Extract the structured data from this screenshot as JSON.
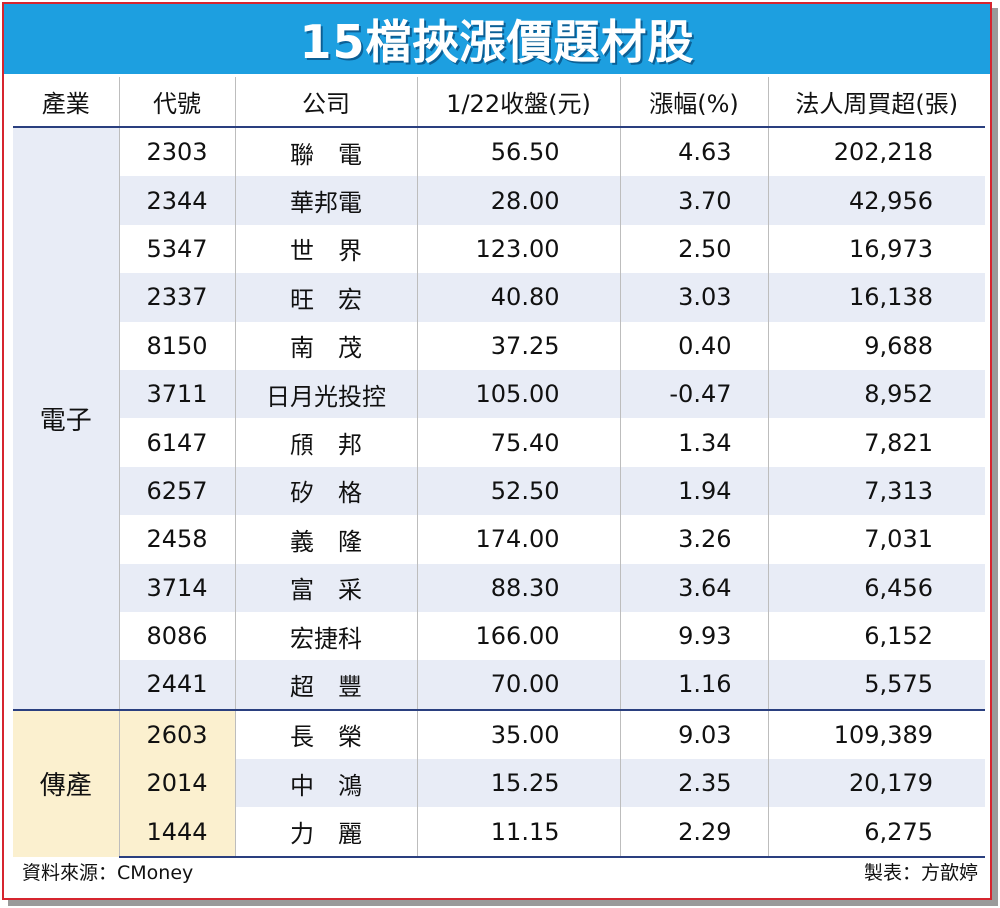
{
  "title": "15檔挾漲價題材股",
  "headers": [
    "產業",
    "代號",
    "公司",
    "1/22收盤(元)",
    "漲幅(%)",
    "法人周買超(張)"
  ],
  "industries": [
    {
      "name": "電子",
      "rows": [
        {
          "code": "2303",
          "company": "聯　電",
          "close": "56.50",
          "change": "4.63",
          "net_buy": "202,218"
        },
        {
          "code": "2344",
          "company": "華邦電",
          "close": "28.00",
          "change": "3.70",
          "net_buy": "42,956"
        },
        {
          "code": "5347",
          "company": "世　界",
          "close": "123.00",
          "change": "2.50",
          "net_buy": "16,973"
        },
        {
          "code": "2337",
          "company": "旺　宏",
          "close": "40.80",
          "change": "3.03",
          "net_buy": "16,138"
        },
        {
          "code": "8150",
          "company": "南　茂",
          "close": "37.25",
          "change": "0.40",
          "net_buy": "9,688"
        },
        {
          "code": "3711",
          "company": "日月光投控",
          "close": "105.00",
          "change": "-0.47",
          "net_buy": "8,952"
        },
        {
          "code": "6147",
          "company": "頎　邦",
          "close": "75.40",
          "change": "1.34",
          "net_buy": "7,821"
        },
        {
          "code": "6257",
          "company": "矽　格",
          "close": "52.50",
          "change": "1.94",
          "net_buy": "7,313"
        },
        {
          "code": "2458",
          "company": "義　隆",
          "close": "174.00",
          "change": "3.26",
          "net_buy": "7,031"
        },
        {
          "code": "3714",
          "company": "富　采",
          "close": "88.30",
          "change": "3.64",
          "net_buy": "6,456"
        },
        {
          "code": "8086",
          "company": "宏捷科",
          "close": "166.00",
          "change": "9.93",
          "net_buy": "6,152"
        },
        {
          "code": "2441",
          "company": "超　豐",
          "close": "70.00",
          "change": "1.16",
          "net_buy": "5,575"
        }
      ]
    },
    {
      "name": "傳產",
      "rows": [
        {
          "code": "2603",
          "company": "長　榮",
          "close": "35.00",
          "change": "9.03",
          "net_buy": "109,389"
        },
        {
          "code": "2014",
          "company": "中　鴻",
          "close": "15.25",
          "change": "2.35",
          "net_buy": "20,179"
        },
        {
          "code": "1444",
          "company": "力　麗",
          "close": "11.15",
          "change": "2.29",
          "net_buy": "6,275"
        }
      ]
    }
  ],
  "footer": {
    "source": "資料來源：CMoney",
    "maker": "製表：方歆婷"
  },
  "colors": {
    "title_bg": "#1d9fe0",
    "border": "#d6252f",
    "stripe": "#e8ecf6",
    "trad_bg": "#fbf0cf",
    "rule": "#2a3f7f"
  }
}
